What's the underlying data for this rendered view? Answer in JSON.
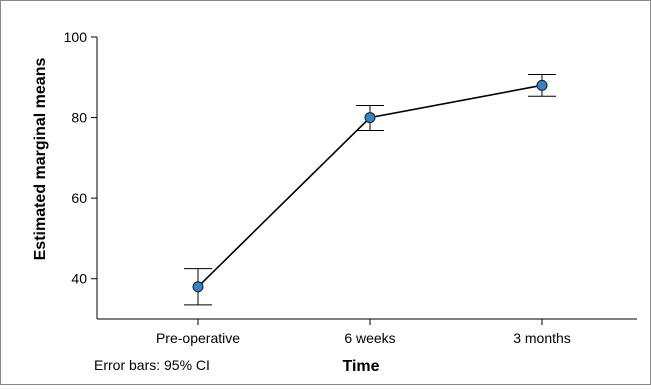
{
  "chart_data": {
    "type": "line",
    "categories": [
      "Pre-operative",
      "6 weeks",
      "3 months"
    ],
    "series": [
      {
        "values": [
          38,
          80,
          88
        ],
        "ci_lower": [
          33.5,
          76.8,
          85.3
        ],
        "ci_upper": [
          42.5,
          83.0,
          90.7
        ]
      }
    ],
    "ylim": [
      30,
      100
    ],
    "yticks": [
      40,
      60,
      80,
      100
    ],
    "xlabel": "Time",
    "ylabel": "Estimated marginal means",
    "note": "Error bars: 95% CI",
    "grid": false,
    "colors": {
      "line": "#000000",
      "marker_fill": "#2e86c9",
      "marker_edge": "#1a1a1a",
      "axis": "#000000"
    }
  }
}
